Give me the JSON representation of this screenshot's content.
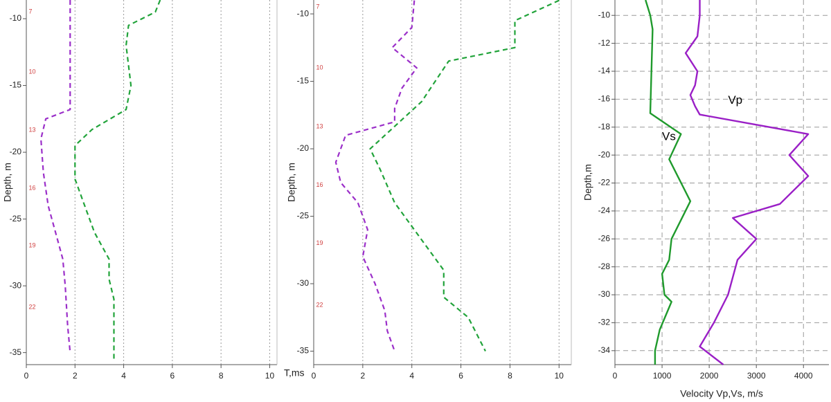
{
  "chart_data": [
    {
      "type": "line",
      "ylabel": "Depth, m",
      "xlabel": "T,ms",
      "xlim": [
        0,
        10.3
      ],
      "ylim": [
        -35.9,
        -8.6
      ],
      "xticks": [
        0,
        2,
        4,
        6,
        8,
        10
      ],
      "yticks": [
        -10,
        -15,
        -20,
        -25,
        -30,
        -35
      ],
      "grid": "x",
      "grid_style": "dotted",
      "series": [
        {
          "color": "#9b2fc9",
          "dashed": true,
          "x": [
            1.8,
            1.8,
            0.8,
            0.6,
            0.7,
            0.9,
            1.2,
            1.5,
            1.6,
            1.7,
            1.8
          ],
          "values": [
            -8.6,
            -16.8,
            -17.5,
            -19,
            -21.5,
            -24,
            -26,
            -28,
            -30,
            -33,
            -35
          ]
        },
        {
          "color": "#21a33a",
          "dashed": true,
          "x": [
            5.5,
            5.3,
            4.2,
            4.1,
            4.3,
            4.1,
            2.7,
            2.0,
            2.0,
            2.4,
            2.8,
            3.4,
            3.4,
            3.6,
            3.6
          ],
          "values": [
            -8.6,
            -9.5,
            -10.5,
            -12,
            -15,
            -16.8,
            -18.3,
            -19.5,
            -22,
            -24,
            -26,
            -28,
            -29.5,
            -31,
            -35.5
          ]
        }
      ],
      "annotations": [
        {
          "text": "7",
          "x": 0.1,
          "y": -9.5
        },
        {
          "text": "10",
          "x": 0.1,
          "y": -14
        },
        {
          "text": "13",
          "x": 0.1,
          "y": -18.35
        },
        {
          "text": "16",
          "x": 0.1,
          "y": -22.7
        },
        {
          "text": "19",
          "x": 0.1,
          "y": -27
        },
        {
          "text": "22",
          "x": 0.1,
          "y": -31.6
        }
      ],
      "annotation_color": "#d04040"
    },
    {
      "type": "line",
      "ylabel": "Depth, m",
      "xlim": [
        0,
        10.5
      ],
      "ylim": [
        -36,
        -8.97
      ],
      "xticks": [
        0,
        2,
        4,
        6,
        8,
        10
      ],
      "yticks": [
        -10,
        -15,
        -20,
        -25,
        -30,
        -35
      ],
      "grid": "x",
      "grid_style": "dotted",
      "series": [
        {
          "color": "#9b2fc9",
          "dashed": true,
          "x": [
            4.1,
            4.0,
            3.2,
            4.2,
            3.6,
            3.3,
            3.3,
            1.3,
            0.9,
            1.1,
            1.8,
            2.2,
            2.0,
            2.5,
            2.9,
            3.0,
            3.3
          ],
          "values": [
            -9,
            -11,
            -12.5,
            -14,
            -15.5,
            -17,
            -18,
            -19,
            -21,
            -22.5,
            -24,
            -26,
            -28,
            -30,
            -32,
            -33.5,
            -35
          ]
        },
        {
          "color": "#21a33a",
          "dashed": true,
          "x": [
            10.0,
            8.2,
            8.2,
            5.5,
            4.4,
            2.3,
            2.7,
            3.3,
            4.5,
            5.3,
            5.3,
            6.3,
            7.0
          ],
          "values": [
            -9,
            -10.5,
            -12.5,
            -13.5,
            -16.5,
            -20,
            -21.5,
            -24,
            -27,
            -29,
            -31,
            -32.5,
            -35
          ]
        }
      ],
      "annotations": [
        {
          "text": "7",
          "x": 0.1,
          "y": -9.5
        },
        {
          "text": "10",
          "x": 0.1,
          "y": -14
        },
        {
          "text": "13",
          "x": 0.1,
          "y": -18.35
        },
        {
          "text": "16",
          "x": 0.1,
          "y": -22.7
        },
        {
          "text": "19",
          "x": 0.1,
          "y": -27
        },
        {
          "text": "22",
          "x": 0.1,
          "y": -31.6
        }
      ],
      "annotation_color": "#d04040"
    },
    {
      "type": "line",
      "ylabel": "Depth,m",
      "xlabel": "Velocity Vp,Vs, m/s",
      "xlim": [
        0,
        4540
      ],
      "ylim": [
        -35,
        -8.9
      ],
      "xticks": [
        0,
        1000,
        2000,
        3000,
        4000
      ],
      "yticks": [
        -10,
        -12,
        -14,
        -16,
        -18,
        -20,
        -22,
        -24,
        -26,
        -28,
        -30,
        -32,
        -34
      ],
      "grid": "both",
      "grid_style": "dashed",
      "series": [
        {
          "color": "#9a1fc6",
          "dashed": false,
          "x": [
            1800,
            1800,
            1750,
            1500,
            1750,
            1700,
            1600,
            1700,
            1800,
            4100,
            3700,
            4100,
            3500,
            2500,
            3000,
            2600,
            2400,
            2100,
            1800,
            2300
          ],
          "values": [
            -8.9,
            -10,
            -11.5,
            -12.7,
            -14,
            -15,
            -15.7,
            -16.5,
            -17.1,
            -18.5,
            -20,
            -21.5,
            -23.5,
            -24.5,
            -26,
            -27.5,
            -30,
            -32,
            -33.7,
            -35
          ]
        },
        {
          "color": "#1f9a2c",
          "dashed": false,
          "x": [
            650,
            750,
            800,
            750,
            1400,
            1150,
            1600,
            1200,
            1150,
            1000,
            1050,
            1200,
            950,
            850,
            850
          ],
          "values": [
            -8.9,
            -10,
            -11,
            -17,
            -18.5,
            -20.3,
            -23.3,
            -26,
            -27.5,
            -28.5,
            -30,
            -30.5,
            -32.5,
            -34,
            -35
          ]
        }
      ],
      "annotations": [
        {
          "text": "Vp",
          "x": 2400,
          "y": -16.1
        },
        {
          "text": "Vs",
          "x": 1000,
          "y": -18.7
        }
      ],
      "annotation_color": "#000000"
    }
  ]
}
